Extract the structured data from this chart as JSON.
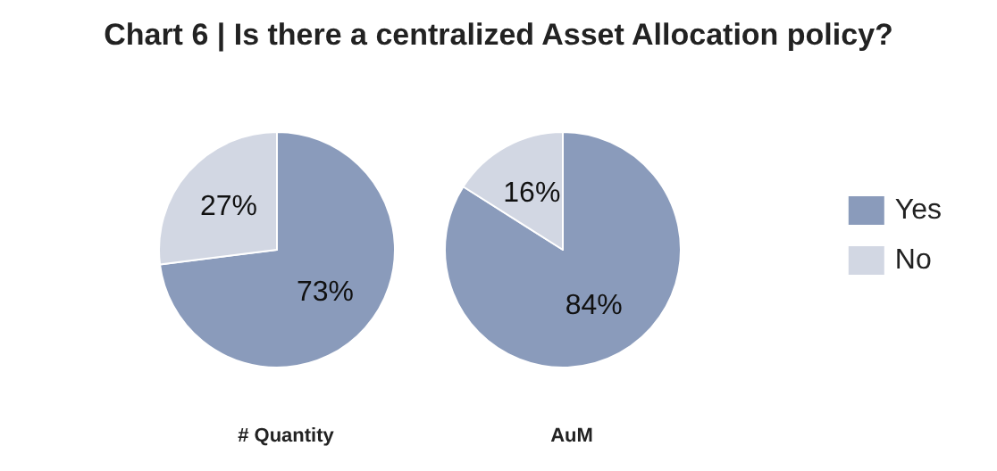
{
  "chart_data": {
    "type": "pie",
    "title": "Chart 6 | Is there a centralized Asset Allocation policy?",
    "categories": [
      "Yes",
      "No"
    ],
    "legend": "right",
    "series": [
      {
        "name": "# Quantity",
        "values": [
          73,
          27
        ],
        "value_labels": [
          "73%",
          "27%"
        ],
        "colors": [
          "#8a9bbb",
          "#d2d7e3"
        ]
      },
      {
        "name": "AuM",
        "values": [
          84,
          16
        ],
        "value_labels": [
          "84%",
          "16%"
        ],
        "colors": [
          "#8a9bbb",
          "#d2d7e3"
        ]
      }
    ]
  }
}
